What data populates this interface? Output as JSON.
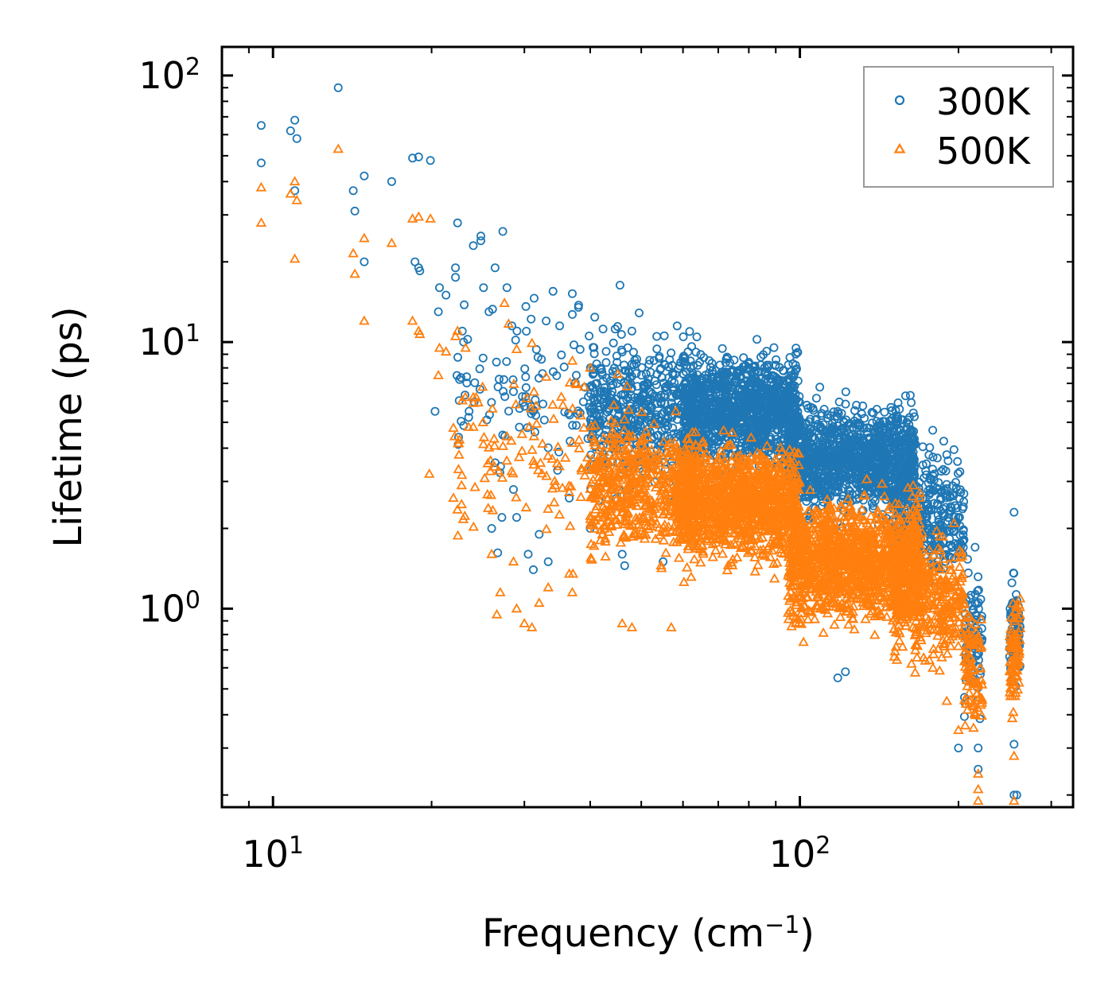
{
  "chart_data": {
    "type": "scatter",
    "title": "",
    "xlabel": "Frequency (cm",
    "xlabel_sup": "−1",
    "xlabel_close": ")",
    "ylabel": "Lifetime (ps)",
    "xscale": "log",
    "yscale": "log",
    "xlim": [
      8.0,
      330.0
    ],
    "ylim": [
      0.18,
      128.0
    ],
    "x_major_ticks": [
      {
        "value": 10,
        "base": "10",
        "exp": "1"
      },
      {
        "value": 100,
        "base": "10",
        "exp": "2"
      }
    ],
    "y_major_ticks": [
      {
        "value": 1,
        "base": "10",
        "exp": "0"
      },
      {
        "value": 10,
        "base": "10",
        "exp": "1"
      },
      {
        "value": 100,
        "base": "10",
        "exp": "2"
      }
    ],
    "legend": {
      "position": "top-right",
      "entries": [
        "300K",
        "500K"
      ]
    },
    "series": [
      {
        "name": "300K",
        "marker": "circle-open",
        "color": "#1f77b4",
        "points": [
          [
            9.5,
            65
          ],
          [
            9.5,
            47
          ],
          [
            10.8,
            62
          ],
          [
            11.0,
            68
          ],
          [
            11.1,
            58
          ],
          [
            11.0,
            37
          ],
          [
            13.3,
            90
          ],
          [
            14.2,
            37
          ],
          [
            14.3,
            31
          ],
          [
            14.9,
            42
          ],
          [
            14.9,
            20
          ],
          [
            16.8,
            40
          ],
          [
            18.4,
            49
          ],
          [
            18.9,
            49.5
          ],
          [
            19.9,
            48
          ],
          [
            18.6,
            20
          ],
          [
            18.9,
            19
          ],
          [
            19.0,
            18.5
          ],
          [
            20.7,
            16
          ],
          [
            20.6,
            13
          ],
          [
            21.3,
            15
          ],
          [
            22.4,
            28
          ],
          [
            22.2,
            19
          ],
          [
            22.2,
            17.5
          ],
          [
            23.0,
            10
          ],
          [
            24.0,
            23
          ],
          [
            24.8,
            25
          ],
          [
            24.8,
            24
          ],
          [
            27.3,
            26
          ],
          [
            27.8,
            16
          ],
          [
            26.4,
            19
          ],
          [
            25.1,
            16
          ],
          [
            25.7,
            13
          ],
          [
            28.4,
            11.5
          ],
          [
            30.2,
            13.6
          ],
          [
            30.9,
            12.2
          ],
          [
            33.0,
            12
          ],
          [
            34.0,
            15.5
          ],
          [
            37.0,
            15.2
          ],
          [
            37.0,
            12.7
          ],
          [
            35.0,
            11.5
          ],
          [
            38.0,
            13.5
          ],
          [
            40.8,
            12.4
          ],
          [
            42.3,
            11.2
          ],
          [
            44.6,
            11.2
          ],
          [
            48.0,
            11.0
          ],
          [
            53.5,
            10.5
          ],
          [
            58.5,
            11.5
          ],
          [
            62.0,
            8.5
          ],
          [
            70.5,
            8.2
          ],
          [
            80.0,
            8.4
          ],
          [
            90.0,
            8.2
          ],
          [
            97.0,
            8.3
          ],
          [
            110.0,
            5.3
          ],
          [
            128.0,
            5.8
          ],
          [
            140.0,
            5.6
          ],
          [
            180.0,
            3.2
          ],
          [
            200.0,
            1.6
          ],
          [
            215.0,
            1.7
          ],
          [
            255.0,
            2.3
          ],
          [
            20.3,
            5.5
          ],
          [
            22.5,
            4.4
          ],
          [
            26.0,
            2.0
          ],
          [
            27.2,
            2.2
          ],
          [
            26.7,
            1.62
          ],
          [
            28.6,
            2.8
          ],
          [
            29.0,
            2.2
          ],
          [
            30.5,
            1.6
          ],
          [
            31.2,
            1.4
          ],
          [
            32.0,
            1.9
          ],
          [
            33.3,
            1.5
          ],
          [
            36.5,
            2.6
          ],
          [
            40.0,
            2.0
          ],
          [
            46.0,
            1.6
          ],
          [
            46.5,
            1.45
          ],
          [
            55.0,
            1.5
          ],
          [
            118.0,
            0.55
          ],
          [
            122.0,
            0.58
          ],
          [
            200.0,
            0.3
          ],
          [
            218.0,
            0.3
          ],
          [
            218.0,
            0.25
          ],
          [
            255.0,
            0.31
          ],
          [
            255.0,
            0.2
          ],
          [
            258.0,
            0.2
          ]
        ],
        "clusters": [
          {
            "x_range": [
              22,
              48
            ],
            "y_center": 6.5,
            "y_spread": 2.2,
            "count": 120
          },
          {
            "x_range": [
              40,
              64
            ],
            "y_center": 5.5,
            "y_spread": 1.9,
            "count": 500
          },
          {
            "x_range": [
              60,
              100
            ],
            "y_center": 5.5,
            "y_spread": 1.6,
            "count": 1200
          },
          {
            "x_range": [
              95,
              165
            ],
            "y_center": 3.6,
            "y_spread": 1.6,
            "count": 1200
          },
          {
            "x_range": [
              150,
              205
            ],
            "y_center": 2.2,
            "y_spread": 1.8,
            "count": 350
          },
          {
            "x_range": [
              205,
              222
            ],
            "y_center": 0.75,
            "y_spread": 1.8,
            "count": 90
          },
          {
            "x_range": [
              250,
              262
            ],
            "y_center": 0.85,
            "y_spread": 1.6,
            "count": 90
          }
        ]
      },
      {
        "name": "500K",
        "marker": "triangle-open",
        "color": "#ff7f0e",
        "points": [
          [
            9.5,
            38
          ],
          [
            9.5,
            28
          ],
          [
            10.8,
            36
          ],
          [
            11.0,
            40
          ],
          [
            11.1,
            34
          ],
          [
            11.0,
            20.5
          ],
          [
            13.3,
            53
          ],
          [
            14.2,
            21.5
          ],
          [
            14.3,
            18
          ],
          [
            14.9,
            24.5
          ],
          [
            14.9,
            12
          ],
          [
            16.8,
            23.5
          ],
          [
            18.4,
            29
          ],
          [
            18.9,
            29.5
          ],
          [
            19.9,
            29
          ],
          [
            18.4,
            12
          ],
          [
            18.9,
            11
          ],
          [
            19.0,
            10.7
          ],
          [
            20.7,
            9.5
          ],
          [
            20.6,
            7.5
          ],
          [
            21.3,
            9.2
          ],
          [
            22.4,
            11
          ],
          [
            22.2,
            10.5
          ],
          [
            23.2,
            9.5
          ],
          [
            24.3,
            6.2
          ],
          [
            24.0,
            5.9
          ],
          [
            27.5,
            14
          ],
          [
            28.0,
            11.7
          ],
          [
            29.0,
            9.4
          ],
          [
            31.0,
            9.9
          ],
          [
            33.0,
            7.4
          ],
          [
            37.0,
            8.5
          ],
          [
            40.0,
            8.0
          ],
          [
            19.8,
            3.2
          ],
          [
            22.0,
            2.6
          ],
          [
            22.6,
            4.3
          ],
          [
            23.5,
            4.8
          ],
          [
            24.0,
            4.8
          ],
          [
            26.0,
            1.6
          ],
          [
            26.6,
            0.95
          ],
          [
            27.0,
            1.15
          ],
          [
            28.6,
            1.5
          ],
          [
            29.0,
            1.0
          ],
          [
            30.0,
            0.88
          ],
          [
            31.0,
            0.85
          ],
          [
            32.0,
            1.05
          ],
          [
            33.3,
            1.2
          ],
          [
            36.5,
            1.35
          ],
          [
            37.0,
            1.15
          ],
          [
            37.1,
            1.35
          ],
          [
            46.0,
            0.88
          ],
          [
            48.0,
            0.85
          ],
          [
            57.0,
            0.85
          ],
          [
            190.0,
            0.45
          ],
          [
            200.0,
            0.35
          ],
          [
            218.0,
            0.21
          ],
          [
            218.0,
            0.24
          ],
          [
            218.0,
            0.19
          ],
          [
            255.0,
            0.28
          ],
          [
            255.0,
            0.19
          ]
        ],
        "clusters": [
          {
            "x_range": [
              22,
              48
            ],
            "y_center": 3.8,
            "y_spread": 2.2,
            "count": 140
          },
          {
            "x_range": [
              40,
              64
            ],
            "y_center": 2.8,
            "y_spread": 1.8,
            "count": 500
          },
          {
            "x_range": [
              58,
              100
            ],
            "y_center": 2.5,
            "y_spread": 1.6,
            "count": 1200
          },
          {
            "x_range": [
              95,
              170
            ],
            "y_center": 1.5,
            "y_spread": 1.7,
            "count": 1300
          },
          {
            "x_range": [
              150,
              205
            ],
            "y_center": 1.1,
            "y_spread": 1.7,
            "count": 350
          },
          {
            "x_range": [
              205,
              222
            ],
            "y_center": 0.6,
            "y_spread": 1.7,
            "count": 90
          },
          {
            "x_range": [
              250,
              262
            ],
            "y_center": 0.65,
            "y_spread": 1.6,
            "count": 90
          }
        ]
      }
    ]
  }
}
